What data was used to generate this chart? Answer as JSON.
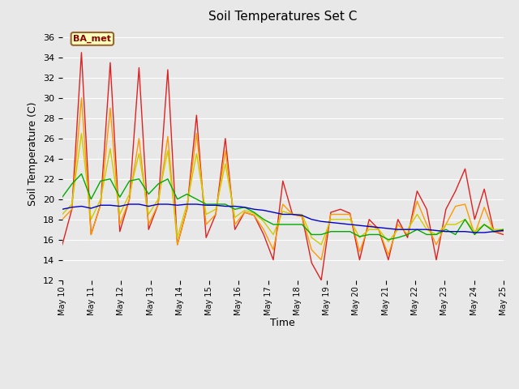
{
  "title": "Soil Temperatures Set C",
  "xlabel": "Time",
  "ylabel": "Soil Temperature (C)",
  "ylim": [
    12,
    37
  ],
  "yticks": [
    12,
    14,
    16,
    18,
    20,
    22,
    24,
    26,
    28,
    30,
    32,
    34,
    36
  ],
  "label_text": "BA_met",
  "fig_bg_color": "#e8e8e8",
  "plot_bg_color": "#e8e8e8",
  "line_colors": {
    "-2cm": "#dd2222",
    "-4cm": "#ff9900",
    "-8cm": "#cccc00",
    "-16cm": "#00aa00",
    "-32cm": "#0000cc"
  },
  "x_start_day": 10,
  "x_end_day": 25,
  "x_ticks": [
    10,
    11,
    12,
    13,
    14,
    15,
    16,
    17,
    18,
    19,
    20,
    21,
    22,
    23,
    24,
    25
  ],
  "x_tick_labels": [
    "May 10",
    "May 11",
    "May 12",
    "May 13",
    "May 14",
    "May 15",
    "May 16",
    "May 17",
    "May 18",
    "May 19",
    "May 20",
    "May 21",
    "May 22",
    "May 23",
    "May 24",
    "May 25"
  ],
  "series": {
    "-2cm": [
      15.5,
      19.0,
      34.5,
      16.5,
      19.5,
      33.5,
      16.8,
      20.0,
      33.0,
      17.0,
      19.5,
      32.8,
      15.5,
      19.0,
      28.3,
      16.2,
      18.5,
      26.0,
      17.0,
      18.7,
      18.4,
      16.5,
      14.0,
      21.8,
      18.5,
      18.3,
      13.7,
      12.0,
      18.7,
      19.0,
      18.6,
      14.0,
      18.0,
      17.0,
      14.0,
      18.0,
      16.2,
      20.8,
      19.0,
      14.0,
      19.0,
      20.8,
      23.0,
      18.0,
      21.0,
      16.8,
      16.5
    ],
    "-4cm": [
      18.0,
      19.0,
      30.0,
      16.5,
      19.5,
      29.0,
      17.5,
      20.0,
      26.0,
      17.5,
      19.5,
      26.2,
      15.5,
      19.0,
      26.5,
      17.5,
      18.5,
      24.8,
      17.5,
      18.7,
      18.4,
      17.0,
      15.0,
      19.5,
      18.5,
      18.3,
      15.0,
      14.0,
      18.5,
      18.5,
      18.5,
      14.8,
      17.5,
      17.0,
      14.5,
      17.5,
      16.5,
      19.8,
      17.5,
      15.5,
      17.5,
      19.3,
      19.5,
      16.5,
      19.2,
      16.8,
      16.8
    ],
    "-8cm": [
      18.5,
      19.5,
      26.5,
      18.0,
      20.0,
      25.0,
      18.5,
      20.5,
      24.5,
      18.5,
      20.0,
      24.8,
      16.2,
      19.5,
      24.5,
      18.5,
      19.0,
      23.5,
      18.2,
      18.9,
      18.6,
      17.8,
      16.5,
      18.8,
      18.5,
      18.5,
      16.2,
      15.5,
      18.0,
      18.0,
      18.0,
      16.2,
      17.0,
      17.0,
      15.8,
      17.0,
      17.0,
      18.5,
      17.0,
      16.5,
      17.5,
      17.5,
      18.0,
      16.8,
      17.5,
      17.0,
      17.0
    ],
    "-16cm": [
      20.2,
      21.5,
      22.5,
      20.0,
      21.8,
      22.0,
      20.2,
      21.8,
      22.0,
      20.5,
      21.5,
      22.0,
      20.0,
      20.5,
      20.0,
      19.5,
      19.5,
      19.5,
      19.0,
      19.2,
      18.7,
      18.0,
      17.5,
      17.5,
      17.5,
      17.5,
      16.5,
      16.5,
      16.8,
      16.8,
      16.8,
      16.3,
      16.5,
      16.5,
      16.0,
      16.2,
      16.5,
      17.0,
      16.5,
      16.5,
      17.0,
      16.5,
      18.0,
      16.5,
      17.5,
      16.8,
      17.0
    ],
    "-32cm": [
      19.0,
      19.2,
      19.3,
      19.1,
      19.4,
      19.4,
      19.3,
      19.5,
      19.5,
      19.3,
      19.5,
      19.5,
      19.4,
      19.5,
      19.5,
      19.4,
      19.4,
      19.3,
      19.3,
      19.2,
      19.0,
      18.9,
      18.7,
      18.5,
      18.5,
      18.4,
      18.0,
      17.8,
      17.7,
      17.6,
      17.5,
      17.4,
      17.3,
      17.2,
      17.1,
      17.0,
      17.0,
      17.0,
      17.0,
      16.9,
      16.8,
      16.8,
      16.8,
      16.7,
      16.7,
      16.8,
      16.9
    ]
  }
}
